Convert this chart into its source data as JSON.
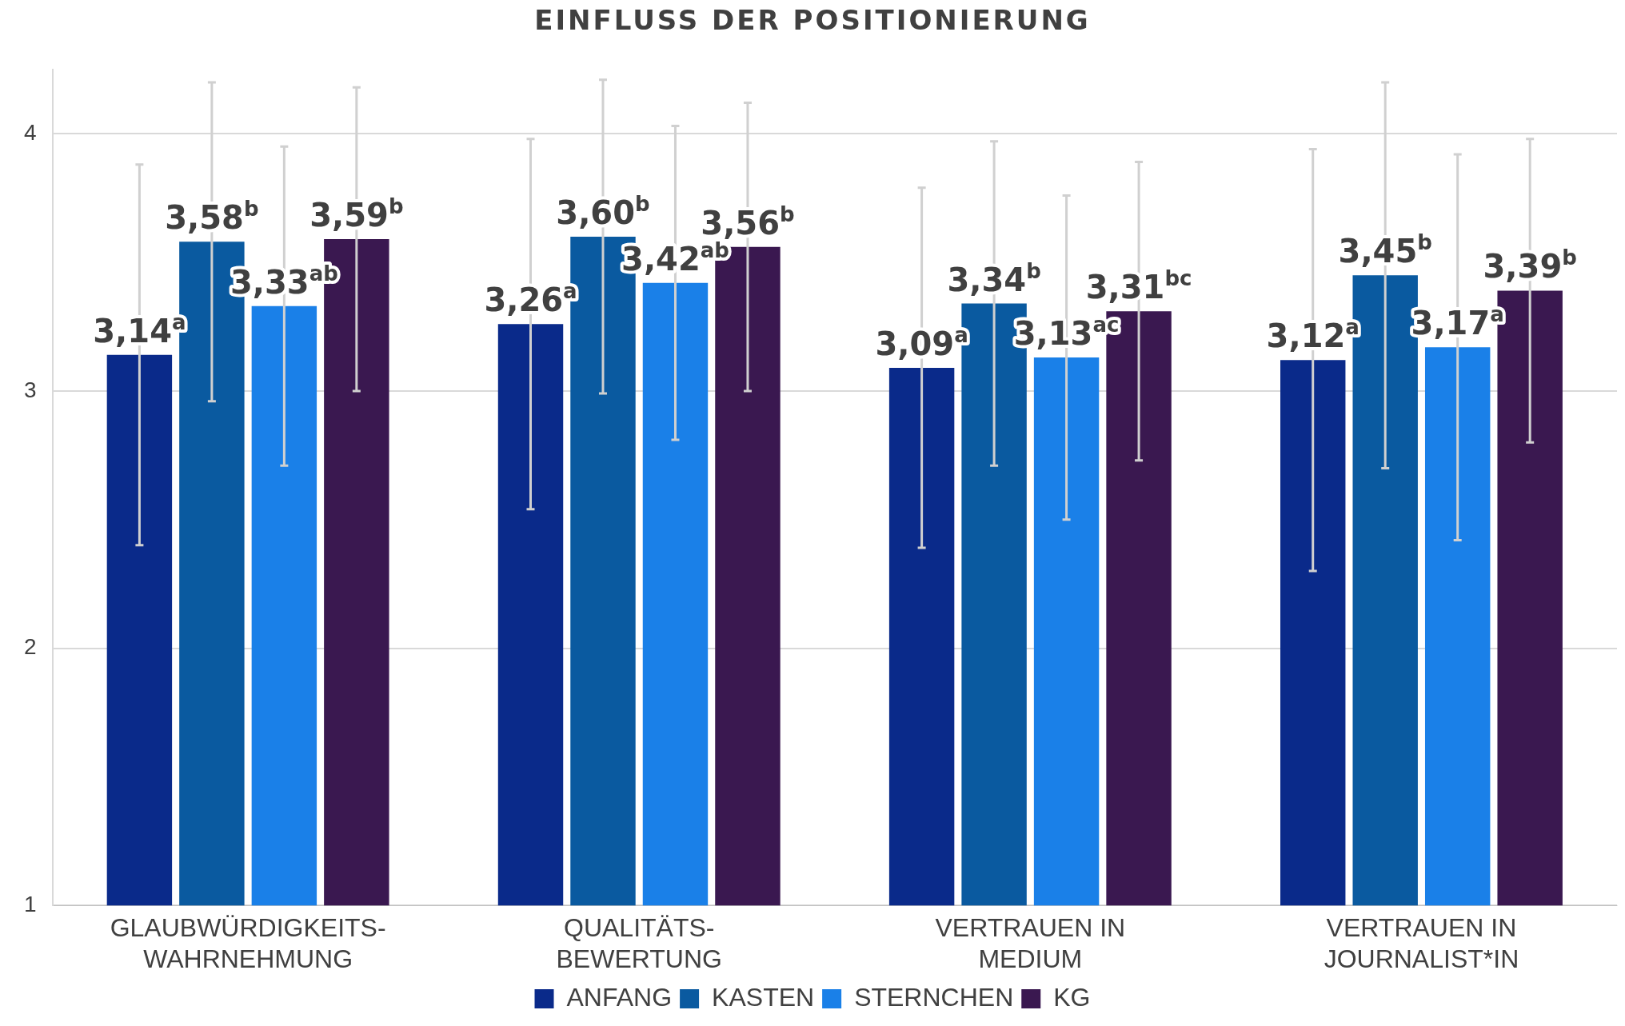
{
  "chart_data": {
    "type": "bar",
    "title": "EINFLUSS DER POSITIONIERUNG",
    "categories": [
      "GLAUBWÜRDIGKEITS-\nWAHRNEHMUNG",
      "QUALITÄTS-\nBEWERTUNG",
      "VERTRAUEN IN\nMEDIUM",
      "VERTRAUEN IN\nJOURNALIST*IN"
    ],
    "series": [
      {
        "name": "ANFANG",
        "color": "#0a2a8a",
        "values": [
          3.14,
          3.26,
          3.09,
          3.12
        ],
        "errors": [
          0.74,
          0.72,
          0.7,
          0.82
        ],
        "value_labels": [
          "3,14$^{a}$",
          "3,26$^{a}$",
          "3,09$^{a}$",
          "3,12$^{a}$"
        ]
      },
      {
        "name": "KASTEN",
        "color": "#0a5aa0",
        "values": [
          3.58,
          3.6,
          3.34,
          3.45
        ],
        "errors": [
          0.62,
          0.61,
          0.63,
          0.75
        ],
        "value_labels": [
          "3,58$^{b}$",
          "3,60$^{b}$",
          "3,34$^{b}$",
          "3,45$^{b}$"
        ]
      },
      {
        "name": "STERNCHEN",
        "color": "#1a80e8",
        "values": [
          3.33,
          3.42,
          3.13,
          3.17
        ],
        "errors": [
          0.62,
          0.61,
          0.63,
          0.75
        ],
        "value_labels": [
          "3,33$^{ab}$",
          "3,42$^{ab}$",
          "3,13$^{ac}$",
          "3,17$^{a}$"
        ]
      },
      {
        "name": "KG",
        "color": "#3a1850",
        "values": [
          3.59,
          3.56,
          3.31,
          3.39
        ],
        "errors": [
          0.59,
          0.56,
          0.58,
          0.59
        ],
        "value_labels": [
          "3,59$^{b}$",
          "3,56$^{b}$",
          "3,31$^{bc}$",
          "3,39$^{b}$"
        ]
      }
    ],
    "ylim": [
      1,
      4.25
    ],
    "yticks": [
      1,
      2,
      3,
      4
    ],
    "grid": "y",
    "legend": "bottom"
  }
}
